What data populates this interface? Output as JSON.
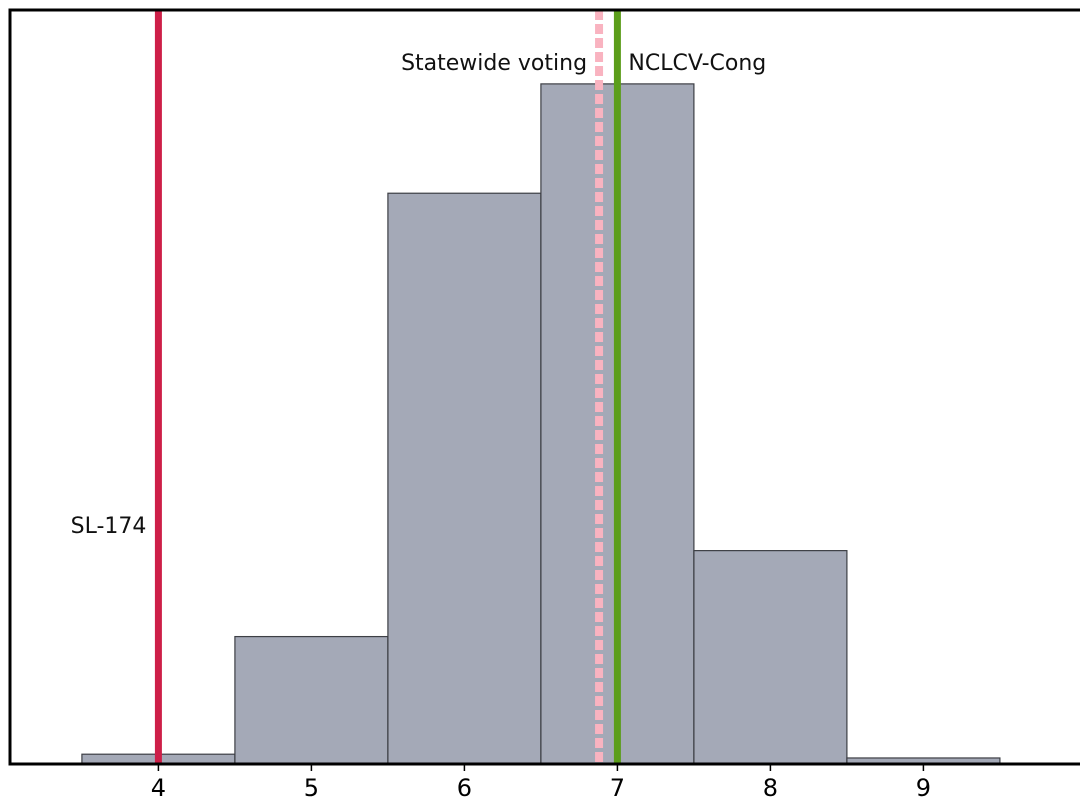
{
  "chart_data": {
    "type": "bar",
    "title": "",
    "xlabel": "",
    "ylabel": "",
    "bins": [
      {
        "center": 4,
        "count": 0.013
      },
      {
        "center": 5,
        "count": 0.169
      },
      {
        "center": 6,
        "count": 0.757
      },
      {
        "center": 7,
        "count": 0.902
      },
      {
        "center": 8,
        "count": 0.283
      },
      {
        "center": 9,
        "count": 0.008
      }
    ],
    "bin_width": 1,
    "xlim": [
      3.03,
      10.03
    ],
    "ylim": [
      0,
      1
    ],
    "xticks": [
      4,
      5,
      6,
      7,
      8,
      9
    ],
    "y_axis_visible": false,
    "grid": false,
    "bar_color": "#a4a9b7",
    "bar_edge_color": "#3d3f45",
    "markers": [
      {
        "name": "SL-174",
        "value": 4.0,
        "color": "#cd1f48",
        "style": "solid",
        "label_side": "left",
        "label_position": "lower"
      },
      {
        "name": "Statewide voting",
        "value": 6.88,
        "color": "#f9b3c0",
        "style": "dashed",
        "label_side": "left",
        "label_position": "top"
      },
      {
        "name": "NCLCV-Cong",
        "value": 7.0,
        "color": "#5c9e1b",
        "style": "solid",
        "label_side": "right",
        "label_position": "top"
      }
    ]
  }
}
